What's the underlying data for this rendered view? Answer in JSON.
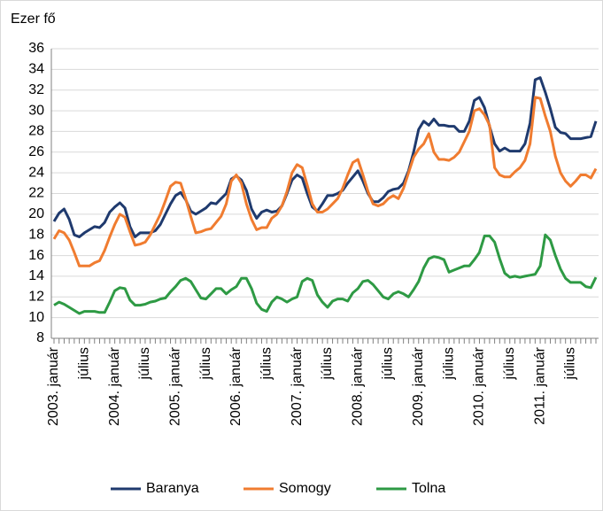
{
  "chart_data": {
    "type": "line",
    "y_label": "Ezer fő",
    "categories": [
      "2003. január",
      null,
      null,
      null,
      null,
      null,
      "július",
      null,
      null,
      null,
      null,
      null,
      "2004. január",
      null,
      null,
      null,
      null,
      null,
      "július",
      null,
      null,
      null,
      null,
      null,
      "2005. január",
      null,
      null,
      null,
      null,
      null,
      "július",
      null,
      null,
      null,
      null,
      null,
      "2006. január",
      null,
      null,
      null,
      null,
      null,
      "július",
      null,
      null,
      null,
      null,
      null,
      "2007. január",
      null,
      null,
      null,
      null,
      null,
      "július",
      null,
      null,
      null,
      null,
      null,
      "2008. január",
      null,
      null,
      null,
      null,
      null,
      "július",
      null,
      null,
      null,
      null,
      null,
      "2009. január",
      null,
      null,
      null,
      null,
      null,
      "július",
      null,
      null,
      null,
      null,
      null,
      "2010. január",
      null,
      null,
      null,
      null,
      null,
      "július",
      null,
      null,
      null,
      null,
      null,
      "2011. január",
      null,
      null,
      null,
      null,
      null,
      "július",
      null,
      null,
      null,
      null,
      null
    ],
    "series": [
      {
        "name": "Baranya",
        "color": "#1f3a6e",
        "values": [
          19.3,
          20.1,
          20.5,
          19.5,
          18.0,
          17.8,
          18.2,
          18.5,
          18.8,
          18.7,
          19.2,
          20.2,
          20.7,
          21.1,
          20.6,
          18.8,
          17.8,
          18.2,
          18.2,
          18.2,
          18.4,
          19.0,
          20.0,
          21.0,
          21.8,
          22.1,
          21.4,
          20.3,
          20.0,
          20.3,
          20.6,
          21.1,
          21.0,
          21.5,
          22.0,
          23.4,
          23.7,
          23.3,
          22.3,
          20.5,
          19.6,
          20.2,
          20.4,
          20.2,
          20.3,
          20.8,
          22.0,
          23.3,
          23.8,
          23.5,
          22.0,
          20.7,
          20.3,
          21.0,
          21.8,
          21.8,
          22.0,
          22.3,
          23.0,
          23.6,
          24.2,
          23.2,
          22.0,
          21.2,
          21.2,
          21.6,
          22.2,
          22.4,
          22.5,
          23.0,
          24.2,
          26.0,
          28.2,
          29.0,
          28.6,
          29.2,
          28.6,
          28.6,
          28.5,
          28.5,
          28.0,
          28.0,
          29.0,
          31.0,
          31.3,
          30.3,
          28.5,
          26.8,
          26.1,
          26.4,
          26.1,
          26.1,
          26.1,
          26.8,
          28.8,
          33.0,
          33.2,
          31.8,
          30.2,
          28.4,
          27.9,
          27.8,
          27.3,
          27.3,
          27.3,
          27.4,
          27.5,
          29.0
        ]
      },
      {
        "name": "Somogy",
        "color": "#f07c30",
        "values": [
          17.6,
          18.4,
          18.2,
          17.5,
          16.3,
          15.0,
          15.0,
          15.0,
          15.3,
          15.5,
          16.5,
          17.8,
          19.0,
          20.0,
          19.7,
          18.3,
          17.0,
          17.1,
          17.3,
          18.0,
          19.0,
          20.0,
          21.3,
          22.7,
          23.1,
          23.0,
          21.5,
          19.8,
          18.2,
          18.3,
          18.5,
          18.6,
          19.2,
          19.8,
          21.0,
          23.2,
          23.8,
          23.0,
          21.0,
          19.5,
          18.5,
          18.7,
          18.7,
          19.6,
          20.0,
          20.8,
          22.2,
          24.0,
          24.8,
          24.5,
          22.8,
          21.0,
          20.2,
          20.2,
          20.5,
          21.0,
          21.5,
          22.5,
          23.8,
          25.0,
          25.3,
          23.8,
          22.2,
          21.0,
          20.8,
          21.0,
          21.5,
          21.8,
          21.5,
          22.5,
          24.0,
          25.5,
          26.3,
          26.8,
          27.8,
          26.0,
          25.3,
          25.3,
          25.2,
          25.5,
          26.0,
          27.0,
          28.0,
          30.0,
          30.2,
          29.6,
          28.6,
          24.5,
          23.8,
          23.6,
          23.6,
          24.1,
          24.5,
          25.2,
          26.8,
          31.3,
          31.2,
          29.5,
          28.0,
          25.6,
          24.0,
          23.2,
          22.7,
          23.2,
          23.8,
          23.8,
          23.5,
          24.4
        ]
      },
      {
        "name": "Tolna",
        "color": "#2e9a44",
        "values": [
          11.2,
          11.5,
          11.3,
          11.0,
          10.7,
          10.4,
          10.6,
          10.6,
          10.6,
          10.5,
          10.5,
          11.5,
          12.6,
          12.9,
          12.8,
          11.7,
          11.2,
          11.2,
          11.3,
          11.5,
          11.6,
          11.8,
          11.9,
          12.5,
          13.0,
          13.6,
          13.8,
          13.5,
          12.7,
          11.9,
          11.8,
          12.3,
          12.8,
          12.8,
          12.3,
          12.7,
          13.0,
          13.8,
          13.8,
          12.8,
          11.4,
          10.8,
          10.6,
          11.5,
          12.0,
          11.8,
          11.5,
          11.8,
          12.0,
          13.5,
          13.8,
          13.6,
          12.2,
          11.5,
          11.0,
          11.6,
          11.8,
          11.8,
          11.6,
          12.4,
          12.8,
          13.5,
          13.6,
          13.2,
          12.6,
          12.0,
          11.8,
          12.3,
          12.5,
          12.3,
          12.0,
          12.7,
          13.5,
          14.8,
          15.7,
          15.9,
          15.8,
          15.6,
          14.4,
          14.6,
          14.8,
          15.0,
          15.0,
          15.6,
          16.3,
          17.9,
          17.9,
          17.3,
          15.7,
          14.3,
          13.9,
          14.0,
          13.9,
          14.0,
          14.1,
          14.2,
          15.0,
          18.0,
          17.5,
          16.0,
          14.7,
          13.8,
          13.4,
          13.4,
          13.4,
          13.0,
          12.9,
          13.9
        ]
      }
    ],
    "ylim": [
      8,
      36
    ],
    "yticks": [
      8,
      10,
      12,
      14,
      16,
      18,
      20,
      22,
      24,
      26,
      28,
      30,
      32,
      34,
      36
    ],
    "grid": true,
    "legend": "bottom"
  }
}
